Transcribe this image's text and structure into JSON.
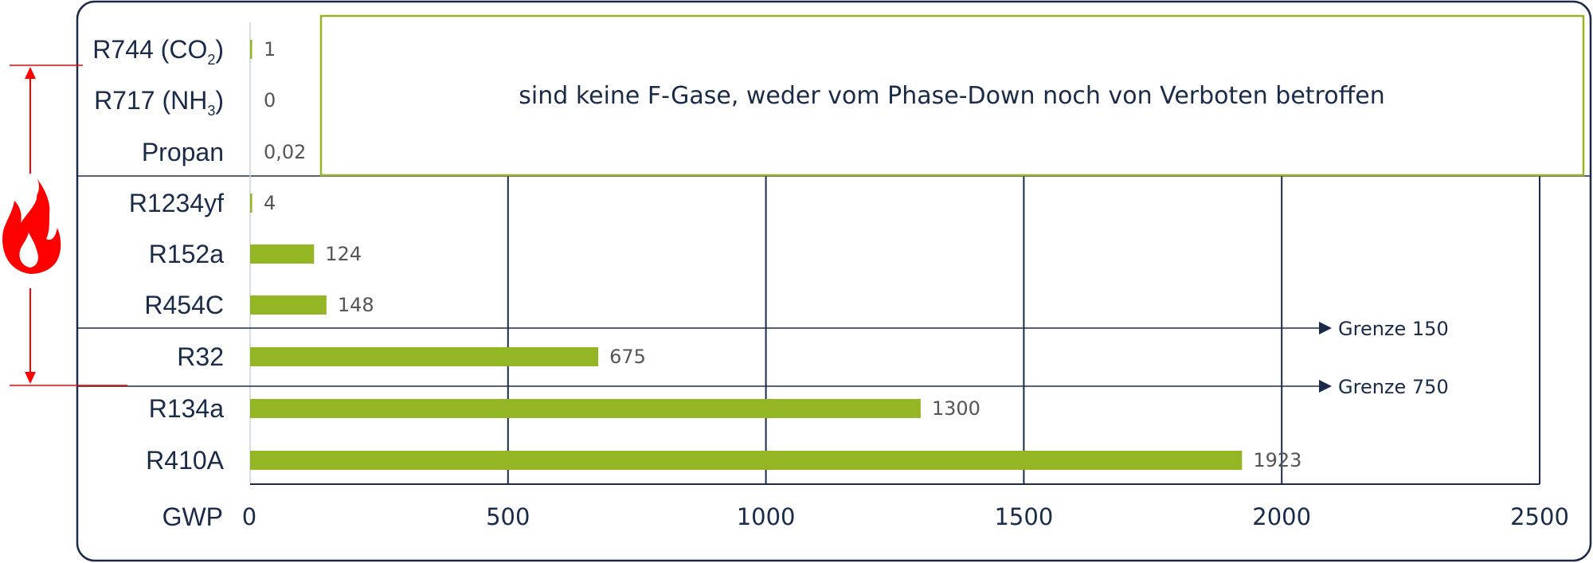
{
  "chart_data": {
    "type": "bar",
    "orientation": "horizontal",
    "title": "",
    "xlabel": "GWP",
    "ylabel": "",
    "xlim": [
      0,
      2500
    ],
    "xticks": [
      0,
      500,
      1000,
      1500,
      2000,
      2500
    ],
    "categories": [
      {
        "base": "R744 (CO",
        "sub": "2",
        "tail": ")"
      },
      {
        "base": "R717 (NH",
        "sub": "3",
        "tail": ")"
      },
      {
        "base": "Propan",
        "sub": "",
        "tail": ""
      },
      {
        "base": "R1234yf",
        "sub": "",
        "tail": ""
      },
      {
        "base": "R152a",
        "sub": "",
        "tail": ""
      },
      {
        "base": "R454C",
        "sub": "",
        "tail": ""
      },
      {
        "base": "R32",
        "sub": "",
        "tail": ""
      },
      {
        "base": "R134a",
        "sub": "",
        "tail": ""
      },
      {
        "base": "R410A",
        "sub": "",
        "tail": ""
      }
    ],
    "values": [
      1,
      0,
      0.02,
      4,
      124,
      148,
      675,
      1300,
      1923
    ],
    "value_labels": [
      "1",
      "0",
      "0,02",
      "4",
      "124",
      "148",
      "675",
      "1300",
      "1923"
    ],
    "grid": true,
    "annotation_box": {
      "text": "sind keine F-Gase, weder vom Phase-Down noch von Verboten betroffen"
    },
    "thresholds": [
      {
        "value": 150,
        "label": "Grenze 150"
      },
      {
        "value": 750,
        "label": "Grenze 750"
      }
    ],
    "flammable_marker": {
      "icon": "flame-icon",
      "color": "#ff0000",
      "range": [
        "R1234yf",
        "R32"
      ]
    },
    "colors": {
      "bar": "#94b524",
      "frame": "#1a2b4a",
      "box_border": "#94b524",
      "marker": "#ff0000"
    }
  }
}
